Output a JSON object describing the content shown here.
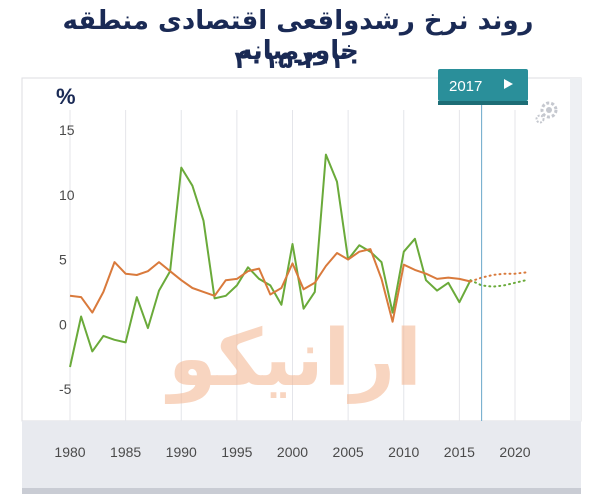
{
  "title": {
    "line1": "روند نرخ رشدواقعی  اقتصادی منطقه خاورمیانه",
    "line2": "۲۰۱۵-۲۰۲۰"
  },
  "unit_label": "%",
  "play_button": {
    "label": "2017",
    "icon": "play-icon"
  },
  "watermark": "ارانیکو",
  "colors": {
    "green": "#6aaa3a",
    "orange": "#d97a3c",
    "panel": "#e8eaef",
    "accent": "#2a8f9a"
  },
  "chart_data": {
    "type": "line",
    "xlim": [
      1977,
      2026
    ],
    "ylim": [
      -6,
      17
    ],
    "x_ticks": [
      1980,
      1985,
      1990,
      1995,
      2000,
      2005,
      2010,
      2015,
      2020
    ],
    "y_ticks": [
      15,
      10,
      5,
      0,
      -5
    ],
    "series": [
      {
        "color": "#6aaa3a",
        "x": [
          1980,
          1981,
          1982,
          1983,
          1984,
          1985,
          1986,
          1987,
          1988,
          1989,
          1990,
          1991,
          1992,
          1993,
          1994,
          1995,
          1996,
          1997,
          1998,
          1999,
          2000,
          2001,
          2002,
          2003,
          2004,
          2005,
          2006,
          2007,
          2008,
          2009,
          2010,
          2011,
          2012,
          2013,
          2014,
          2015,
          2016
        ],
        "y": [
          -3.3,
          0.6,
          -2.1,
          -0.9,
          -1.2,
          -1.4,
          2.1,
          -0.3,
          2.6,
          4.1,
          12.1,
          10.7,
          8.0,
          2.0,
          2.2,
          3.0,
          4.4,
          3.5,
          3.0,
          1.5,
          6.2,
          1.2,
          2.5,
          13.1,
          11.0,
          5.0,
          6.1,
          5.6,
          4.8,
          0.9,
          5.6,
          6.6,
          3.4,
          2.6,
          3.2,
          1.7,
          3.4
        ],
        "projection": {
          "x": [
            2016,
            2017,
            2018,
            2019,
            2020,
            2021
          ],
          "y": [
            3.4,
            3.0,
            2.9,
            3.0,
            3.2,
            3.4
          ]
        }
      },
      {
        "color": "#d97a3c",
        "x": [
          1980,
          1981,
          1982,
          1983,
          1984,
          1985,
          1986,
          1987,
          1988,
          1989,
          1990,
          1991,
          1992,
          1993,
          1994,
          1995,
          1996,
          1997,
          1998,
          1999,
          2000,
          2001,
          2002,
          2003,
          2004,
          2005,
          2006,
          2007,
          2008,
          2009,
          2010,
          2011,
          2012,
          2013,
          2014,
          2015,
          2016
        ],
        "y": [
          2.2,
          2.1,
          0.9,
          2.5,
          4.8,
          3.9,
          3.8,
          4.1,
          4.8,
          4.1,
          3.4,
          2.8,
          2.5,
          2.2,
          3.4,
          3.5,
          4.1,
          4.3,
          2.3,
          2.8,
          4.7,
          2.7,
          3.2,
          4.5,
          5.5,
          5.0,
          5.6,
          5.8,
          3.5,
          0.2,
          4.6,
          4.2,
          3.9,
          3.5,
          3.6,
          3.5,
          3.3
        ],
        "projection": {
          "x": [
            2016,
            2017,
            2018,
            2019,
            2020,
            2021
          ],
          "y": [
            3.3,
            3.6,
            3.8,
            3.9,
            3.9,
            4.0
          ]
        }
      }
    ]
  }
}
